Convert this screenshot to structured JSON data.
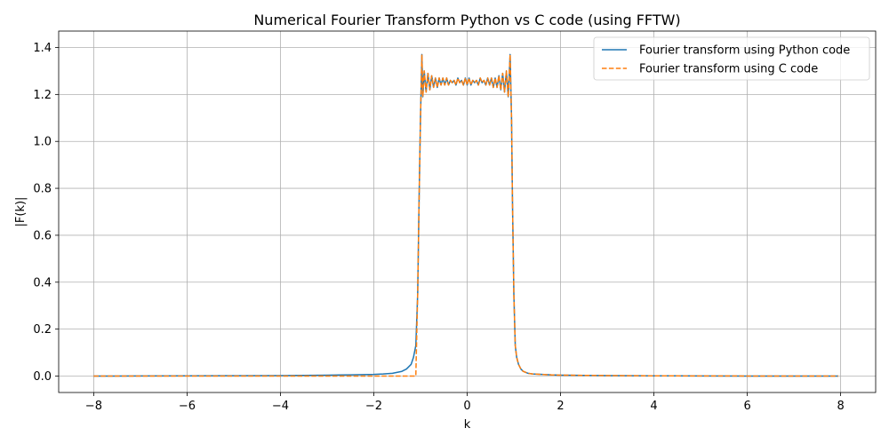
{
  "chart_data": {
    "type": "line",
    "title": "Numerical Fourier Transform Python vs C code (using FFTW)",
    "xlabel": "k",
    "ylabel": "|F(k)|",
    "xlim": [
      -8.75,
      8.75
    ],
    "ylim": [
      -0.07,
      1.47
    ],
    "xticks": [
      -8,
      -6,
      -4,
      -2,
      0,
      2,
      4,
      6,
      8
    ],
    "yticks": [
      0.0,
      0.2,
      0.4,
      0.6,
      0.8,
      1.0,
      1.2,
      1.4
    ],
    "xtick_labels": [
      "−8",
      "−6",
      "−4",
      "−2",
      "0",
      "2",
      "4",
      "6",
      "8"
    ],
    "ytick_labels": [
      "0.0",
      "0.2",
      "0.4",
      "0.6",
      "0.8",
      "1.0",
      "1.2",
      "1.4"
    ],
    "grid": true,
    "legend_position": "top-right",
    "series": [
      {
        "name": "Fourier transform using Python code",
        "color": "#1f77b4",
        "style": "solid",
        "x": [
          -8.0,
          -7.0,
          -6.0,
          -5.0,
          -4.0,
          -3.5,
          -3.0,
          -2.5,
          -2.0,
          -1.8,
          -1.6,
          -1.4,
          -1.3,
          -1.2,
          -1.15,
          -1.1,
          -1.06,
          -1.03,
          -1.0,
          -0.97,
          -0.95,
          -0.92,
          -0.88,
          -0.84,
          -0.8,
          -0.76,
          -0.72,
          -0.68,
          -0.64,
          -0.6,
          -0.56,
          -0.52,
          -0.48,
          -0.44,
          -0.4,
          -0.36,
          -0.32,
          -0.28,
          -0.24,
          -0.2,
          -0.16,
          -0.12,
          -0.08,
          -0.04,
          0.0,
          0.04,
          0.08,
          0.12,
          0.16,
          0.2,
          0.24,
          0.28,
          0.32,
          0.36,
          0.4,
          0.44,
          0.48,
          0.52,
          0.56,
          0.6,
          0.64,
          0.68,
          0.72,
          0.76,
          0.8,
          0.84,
          0.88,
          0.92,
          0.95,
          0.97,
          1.0,
          1.03,
          1.06,
          1.1,
          1.15,
          1.2,
          1.3,
          1.4,
          1.6,
          1.8,
          2.0,
          2.5,
          3.0,
          3.5,
          4.0,
          5.0,
          6.0,
          7.0,
          7.95
        ],
        "y": [
          0.0,
          0.0005,
          0.001,
          0.0015,
          0.002,
          0.003,
          0.004,
          0.005,
          0.007,
          0.009,
          0.012,
          0.02,
          0.03,
          0.05,
          0.08,
          0.13,
          0.35,
          0.75,
          1.1,
          1.37,
          1.19,
          1.3,
          1.21,
          1.29,
          1.22,
          1.28,
          1.23,
          1.27,
          1.23,
          1.27,
          1.24,
          1.27,
          1.24,
          1.27,
          1.24,
          1.26,
          1.25,
          1.26,
          1.24,
          1.27,
          1.25,
          1.26,
          1.24,
          1.27,
          1.24,
          1.27,
          1.24,
          1.26,
          1.25,
          1.26,
          1.24,
          1.27,
          1.25,
          1.26,
          1.24,
          1.27,
          1.24,
          1.27,
          1.23,
          1.27,
          1.23,
          1.28,
          1.22,
          1.29,
          1.21,
          1.3,
          1.19,
          1.37,
          1.1,
          0.75,
          0.35,
          0.13,
          0.08,
          0.05,
          0.03,
          0.02,
          0.012,
          0.009,
          0.007,
          0.005,
          0.004,
          0.003,
          0.002,
          0.0015,
          0.001,
          0.0005,
          0.0002,
          0.0001,
          0.0
        ]
      },
      {
        "name": "Fourier transform using C code",
        "color": "#ff7f0e",
        "style": "dashed",
        "x": [
          -8.0,
          -6.0,
          -4.0,
          -2.5,
          -2.0,
          -1.5,
          -1.2,
          -1.1,
          -1.06,
          -1.03,
          -1.0,
          -0.97,
          -0.95,
          -0.92,
          -0.88,
          -0.84,
          -0.8,
          -0.76,
          -0.72,
          -0.68,
          -0.64,
          -0.6,
          -0.56,
          -0.52,
          -0.48,
          -0.44,
          -0.4,
          -0.36,
          -0.32,
          -0.28,
          -0.24,
          -0.2,
          -0.16,
          -0.12,
          -0.08,
          -0.04,
          0.0,
          0.04,
          0.08,
          0.12,
          0.16,
          0.2,
          0.24,
          0.28,
          0.32,
          0.36,
          0.4,
          0.44,
          0.48,
          0.52,
          0.56,
          0.6,
          0.64,
          0.68,
          0.72,
          0.76,
          0.8,
          0.84,
          0.88,
          0.92,
          0.95,
          0.97,
          1.0,
          1.03,
          1.06,
          1.1,
          1.15,
          1.2,
          1.3,
          1.4,
          1.6,
          1.8,
          2.0,
          2.5,
          3.0,
          3.5,
          4.0,
          5.0,
          6.0,
          7.0,
          7.95
        ],
        "y": [
          0.0,
          0.0,
          0.0,
          0.0,
          0.0,
          0.0,
          0.0,
          0.0,
          0.35,
          0.75,
          1.1,
          1.37,
          1.19,
          1.3,
          1.21,
          1.29,
          1.22,
          1.28,
          1.23,
          1.27,
          1.23,
          1.27,
          1.24,
          1.27,
          1.24,
          1.27,
          1.24,
          1.26,
          1.25,
          1.26,
          1.24,
          1.27,
          1.25,
          1.26,
          1.24,
          1.27,
          1.24,
          1.27,
          1.24,
          1.26,
          1.25,
          1.26,
          1.24,
          1.27,
          1.25,
          1.26,
          1.24,
          1.27,
          1.24,
          1.27,
          1.23,
          1.27,
          1.23,
          1.28,
          1.22,
          1.29,
          1.21,
          1.3,
          1.19,
          1.37,
          1.1,
          0.75,
          0.35,
          0.13,
          0.08,
          0.05,
          0.03,
          0.02,
          0.012,
          0.009,
          0.007,
          0.005,
          0.004,
          0.003,
          0.002,
          0.0015,
          0.001,
          0.0005,
          0.0002,
          0.0001,
          0.0
        ]
      }
    ]
  }
}
